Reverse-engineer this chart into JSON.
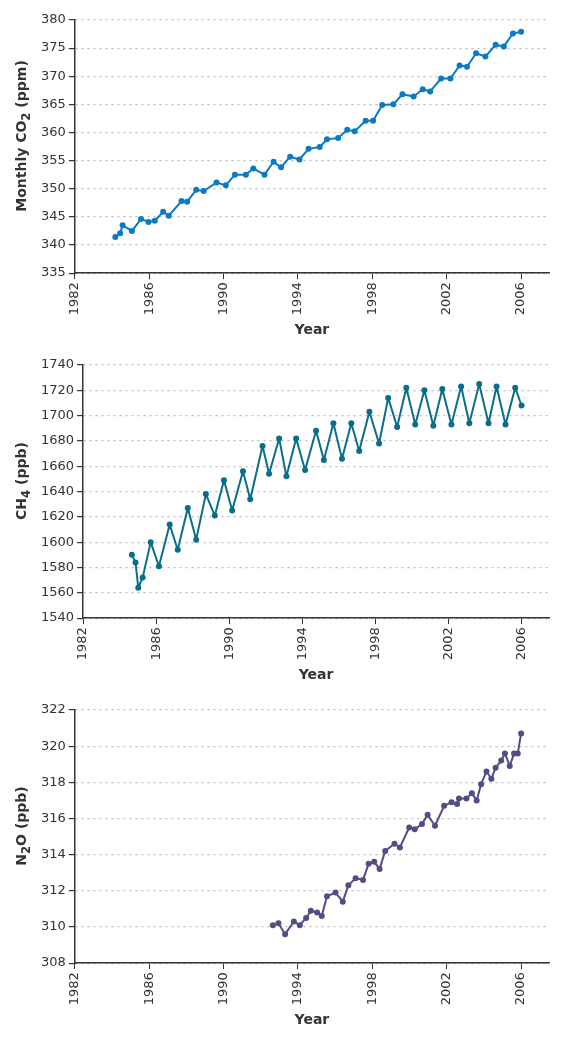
{
  "chart_data": [
    {
      "type": "line",
      "ylabel": "Monthly CO$_{2}$ (ppm)",
      "xlabel": "Year",
      "xlim": [
        1982,
        2007.5
      ],
      "xticks": [
        1982,
        1986,
        1990,
        1994,
        1998,
        2002,
        2006
      ],
      "ylim": [
        335,
        380
      ],
      "yticks": [
        335,
        340,
        345,
        350,
        355,
        360,
        365,
        370,
        375,
        380
      ],
      "grid": "y",
      "marker": "circle",
      "line_style": "solid",
      "series": [
        {
          "color": "#0a7bc2",
          "x": [
            1984.18,
            1984.44,
            1984.57,
            1985.07,
            1985.56,
            1985.96,
            1986.3,
            1986.75,
            1987.05,
            1987.74,
            1988.04,
            1988.53,
            1988.93,
            1989.62,
            1990.12,
            1990.61,
            1991.2,
            1991.6,
            1992.2,
            1992.69,
            1993.09,
            1993.58,
            1994.08,
            1994.57,
            1995.17,
            1995.56,
            1996.16,
            1996.65,
            1997.05,
            1997.64,
            1998.04,
            1998.53,
            1999.13,
            1999.62,
            2000.22,
            2000.71,
            2001.11,
            2001.7,
            2002.2,
            2002.69,
            2003.09,
            2003.58,
            2004.08,
            2004.63,
            2005.07,
            2005.56,
            2006.0
          ],
          "values": [
            341.4,
            342.1,
            343.5,
            342.5,
            344.6,
            344.1,
            344.3,
            345.9,
            345.2,
            347.8,
            347.7,
            349.8,
            349.6,
            351.1,
            350.6,
            352.5,
            352.5,
            353.6,
            352.5,
            354.8,
            353.8,
            355.7,
            355.2,
            357.1,
            357.4,
            358.8,
            359.0,
            360.5,
            360.2,
            362.1,
            362.1,
            364.9,
            365.0,
            366.8,
            366.4,
            367.7,
            367.3,
            369.6,
            369.6,
            371.9,
            371.7,
            374.1,
            373.5,
            375.6,
            375.3,
            377.6,
            377.9
          ]
        }
      ]
    },
    {
      "type": "line",
      "ylabel": "CH$_{4}$ (ppb)",
      "xlabel": "Year",
      "xlim": [
        1982,
        2007.5
      ],
      "xticks": [
        1982,
        1986,
        1990,
        1994,
        1998,
        2002,
        2006
      ],
      "ylim": [
        1540,
        1740
      ],
      "yticks": [
        1540,
        1560,
        1580,
        1600,
        1620,
        1640,
        1660,
        1680,
        1700,
        1720,
        1740
      ],
      "grid": "y",
      "marker": "circle",
      "line_style": "solid",
      "series": [
        {
          "color": "#0a6e8a",
          "x": [
            1984.67,
            1984.87,
            1985.02,
            1985.26,
            1985.7,
            1986.15,
            1986.74,
            1987.18,
            1987.73,
            1988.19,
            1988.72,
            1989.21,
            1989.71,
            1990.16,
            1990.75,
            1991.15,
            1991.82,
            1992.18,
            1992.73,
            1993.13,
            1993.66,
            1994.15,
            1994.75,
            1995.18,
            1995.7,
            1996.17,
            1996.68,
            1997.11,
            1997.67,
            1998.2,
            1998.7,
            1999.19,
            1999.69,
            2000.18,
            2000.68,
            2001.17,
            2001.66,
            2002.16,
            2002.69,
            2003.14,
            2003.68,
            2004.19,
            2004.63,
            2005.12,
            2005.65,
            2006.0
          ],
          "values": [
            1590,
            1584,
            1564,
            1572,
            1600,
            1581,
            1614,
            1594,
            1627,
            1602,
            1638,
            1621,
            1649,
            1625,
            1656,
            1634,
            1676,
            1654,
            1682,
            1652,
            1682,
            1657,
            1688,
            1665,
            1694,
            1666,
            1694,
            1672,
            1703,
            1678,
            1714,
            1691,
            1722,
            1693,
            1720,
            1692,
            1721,
            1693,
            1723,
            1694,
            1725,
            1694,
            1723,
            1693,
            1722,
            1708
          ]
        }
      ]
    },
    {
      "type": "line",
      "ylabel": "N$_{2}$O (ppb)",
      "xlabel": "Year",
      "xlim": [
        1982,
        2007.5
      ],
      "xticks": [
        1982,
        1986,
        1990,
        1994,
        1998,
        2002,
        2006
      ],
      "ylim": [
        308,
        322
      ],
      "yticks": [
        308,
        310,
        312,
        314,
        316,
        318,
        320,
        322
      ],
      "grid": "y",
      "marker": "circle",
      "line_style": "solid",
      "series": [
        {
          "color": "#4f4f85",
          "x": [
            1992.65,
            1992.95,
            1993.31,
            1993.78,
            1994.1,
            1994.44,
            1994.69,
            1995.03,
            1995.28,
            1995.56,
            1996.02,
            1996.41,
            1996.71,
            1997.1,
            1997.5,
            1997.8,
            1998.1,
            1998.39,
            1998.69,
            1999.19,
            1999.48,
            1999.98,
            2000.28,
            2000.67,
            2000.97,
            2001.37,
            2001.86,
            2002.26,
            2002.56,
            2002.66,
            2003.06,
            2003.35,
            2003.61,
            2003.85,
            2004.14,
            2004.4,
            2004.63,
            2004.93,
            2005.13,
            2005.39,
            2005.62,
            2005.82,
            2006.0
          ],
          "values": [
            310.1,
            310.2,
            309.6,
            310.3,
            310.1,
            310.5,
            310.9,
            310.8,
            310.6,
            311.7,
            311.9,
            311.4,
            312.3,
            312.7,
            312.6,
            313.5,
            313.6,
            313.2,
            314.2,
            314.6,
            314.4,
            315.5,
            315.4,
            315.7,
            316.2,
            315.6,
            316.7,
            316.9,
            316.8,
            317.1,
            317.1,
            317.4,
            317.0,
            317.9,
            318.6,
            318.2,
            318.8,
            319.2,
            319.6,
            318.9,
            319.6,
            319.6,
            320.7
          ]
        }
      ]
    }
  ]
}
